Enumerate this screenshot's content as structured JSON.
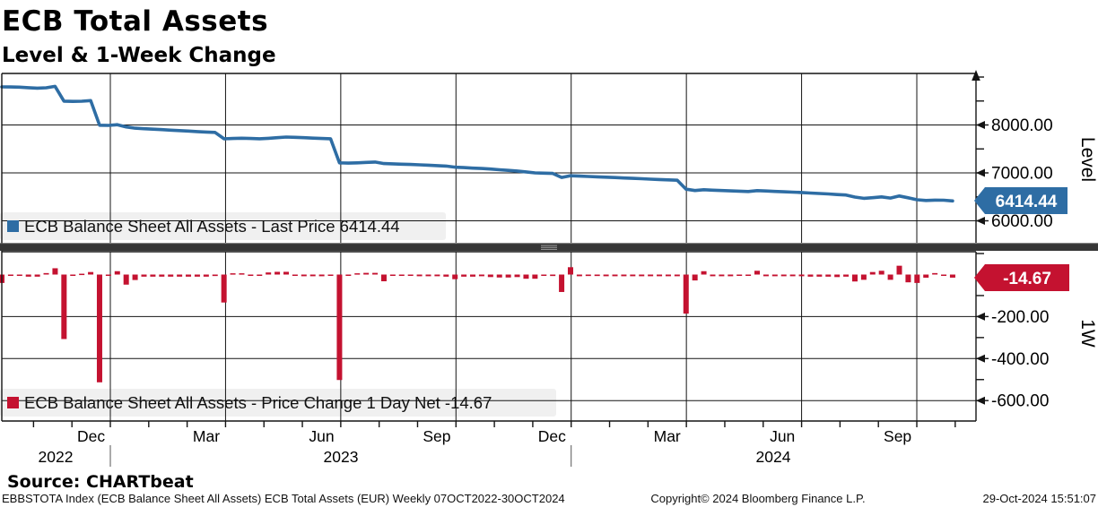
{
  "header": {
    "title": "ECB Total Assets",
    "subtitle": "Level & 1-Week Change"
  },
  "source_line": "Source: CHARTbeat",
  "footer": {
    "left": "EBBSTOTA Index (ECB Balance Sheet All Assets) ECB Total Assets (EUR)  Weekly 07OCT2022-30OCT2024",
    "center": "Copyright© 2024 Bloomberg Finance L.P.",
    "right": "29-Oct-2024 15:51:07"
  },
  "chart_data": {
    "type": "combo",
    "title": "ECB Total Assets",
    "subtitle": "Level & 1-Week Change",
    "frequency": "Weekly",
    "x_range_label": "07OCT2022-30OCT2024",
    "month_tick_labels": [
      "Dec",
      "Mar",
      "Jun",
      "Sep",
      "Dec",
      "Mar",
      "Jun",
      "Sep"
    ],
    "year_labels": [
      "2022",
      "2023",
      "2024"
    ],
    "grid": true,
    "legend_position": "inside-left",
    "panels": [
      {
        "type": "line",
        "name": "level",
        "axis_title": "Level",
        "legend": "ECB Balance Sheet All Assets - Last Price 6414.44",
        "badge": "6414.44",
        "last_value": 6414.44,
        "color": "#2e6da4",
        "ylim": [
          5540,
          9075
        ],
        "ytick_labels": [
          "8000.00",
          "7000.00",
          "6000.00"
        ],
        "ytick_values": [
          8000,
          7000,
          6000
        ],
        "minor_tick_values": [
          9000,
          8500,
          7500,
          6500
        ],
        "values": [
          8795,
          8792,
          8788,
          8778,
          8768,
          8775,
          8805,
          8498,
          8492,
          8496,
          8508,
          7995,
          7990,
          8006,
          7958,
          7932,
          7922,
          7912,
          7902,
          7892,
          7882,
          7872,
          7862,
          7852,
          7845,
          7712,
          7718,
          7724,
          7718,
          7712,
          7722,
          7735,
          7748,
          7742,
          7734,
          7726,
          7718,
          7712,
          7210,
          7204,
          7210,
          7218,
          7226,
          7194,
          7188,
          7182,
          7176,
          7168,
          7160,
          7152,
          7142,
          7120,
          7110,
          7100,
          7092,
          7080,
          7066,
          7052,
          7040,
          7020,
          7000,
          6995,
          6988,
          6905,
          6940,
          6932,
          6925,
          6918,
          6910,
          6902,
          6894,
          6886,
          6878,
          6870,
          6862,
          6854,
          6846,
          6660,
          6632,
          6648,
          6640,
          6632,
          6624,
          6618,
          6612,
          6630,
          6622,
          6614,
          6606,
          6598,
          6590,
          6580,
          6570,
          6560,
          6548,
          6538,
          6495,
          6470,
          6482,
          6500,
          6475,
          6517,
          6480,
          6440,
          6425,
          6432,
          6429.11,
          6414.44
        ]
      },
      {
        "type": "bar",
        "name": "one_week_change",
        "axis_title": "1W",
        "legend": "ECB Balance Sheet All Assets -  Price Change 1 Day Net -14.67",
        "badge": "-14.67",
        "last_value": -14.67,
        "color": "#c41230",
        "ylim": [
          -699,
          113
        ],
        "ytick_labels": [
          "-200.00",
          "-400.00",
          "-600.00"
        ],
        "ytick_values": [
          -200,
          -400,
          -600
        ],
        "minor_tick_values": [
          100,
          -100,
          -300,
          -500
        ],
        "values": [
          -40,
          -3,
          -4,
          -10,
          -10,
          7,
          30,
          -307,
          -6,
          4,
          12,
          -513,
          -5,
          16,
          -48,
          -26,
          -10,
          -10,
          -10,
          -10,
          -10,
          -10,
          -10,
          -10,
          -7,
          -133,
          6,
          6,
          -6,
          -6,
          10,
          13,
          13,
          -6,
          -8,
          -8,
          -8,
          -6,
          -502,
          -6,
          6,
          8,
          8,
          -32,
          -6,
          -6,
          -6,
          -8,
          -8,
          -8,
          -10,
          -22,
          -10,
          -10,
          -8,
          -12,
          -14,
          -14,
          -12,
          -20,
          -20,
          -5,
          -7,
          -83,
          35,
          -8,
          -7,
          -7,
          -8,
          -8,
          -8,
          -8,
          -8,
          -8,
          -8,
          -8,
          -8,
          -186,
          -28,
          16,
          -8,
          -8,
          -8,
          -6,
          -6,
          18,
          -8,
          -8,
          -8,
          -8,
          -8,
          -10,
          -10,
          -10,
          -12,
          -10,
          -33,
          -25,
          12,
          18,
          -25,
          42,
          -37,
          -40,
          -15,
          7,
          -3,
          -14.67
        ]
      }
    ]
  }
}
